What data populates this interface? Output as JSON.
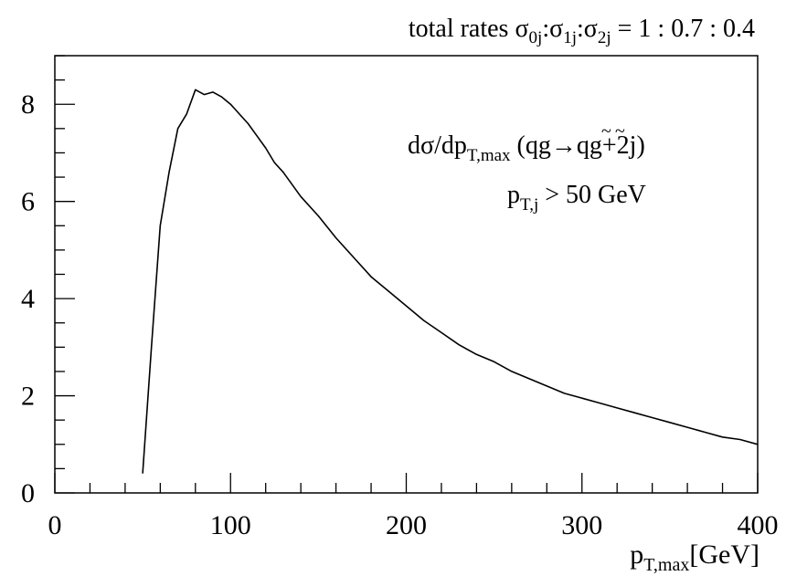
{
  "chart_data": {
    "type": "line",
    "title": "total rates σ0j:σ1j:σ2j = 1 : 0.7 : 0.4",
    "title_parts": {
      "prefix": "total rates ",
      "sym": "σ",
      "sub0": "0j",
      "sub1": "1j",
      "sub2": "2j",
      "sep": ":",
      "ratio": " = 1 : 0.7 : 0.4"
    },
    "annotation1": {
      "main": "dσ/dp",
      "sub": "T,max",
      "process": " (qg→",
      "q": "q",
      "g": "g",
      "tilde": "~",
      "tail": "+2j)"
    },
    "annotation2": {
      "main": "p",
      "sub": "T,j",
      "rest": " > 50 GeV"
    },
    "xlabel": {
      "main": "p",
      "sub": "T,max",
      "unit": "[GeV]"
    },
    "ylabel": "",
    "xlim": [
      0,
      400
    ],
    "ylim": [
      0,
      9
    ],
    "xticks": [
      0,
      100,
      200,
      300,
      400
    ],
    "xtick_labels": [
      "0",
      "100",
      "200",
      "300",
      "400"
    ],
    "yticks": [
      0,
      2,
      4,
      6,
      8
    ],
    "ytick_labels": [
      "0",
      "2",
      "4",
      "6",
      "8"
    ],
    "grid": false,
    "x": [
      50,
      55,
      60,
      65,
      70,
      75,
      80,
      85,
      90,
      95,
      100,
      105,
      110,
      115,
      120,
      125,
      130,
      140,
      150,
      160,
      170,
      180,
      190,
      200,
      210,
      220,
      230,
      240,
      250,
      260,
      270,
      280,
      290,
      300,
      310,
      320,
      330,
      340,
      350,
      360,
      370,
      380,
      390,
      400
    ],
    "y": [
      0.4,
      3.0,
      5.5,
      6.6,
      7.5,
      7.8,
      8.3,
      8.2,
      8.25,
      8.15,
      8.0,
      7.8,
      7.6,
      7.35,
      7.1,
      6.8,
      6.6,
      6.1,
      5.7,
      5.25,
      4.85,
      4.45,
      4.15,
      3.85,
      3.55,
      3.3,
      3.05,
      2.85,
      2.7,
      2.5,
      2.35,
      2.2,
      2.05,
      1.95,
      1.85,
      1.75,
      1.65,
      1.55,
      1.45,
      1.35,
      1.25,
      1.15,
      1.1,
      1.0
    ]
  }
}
